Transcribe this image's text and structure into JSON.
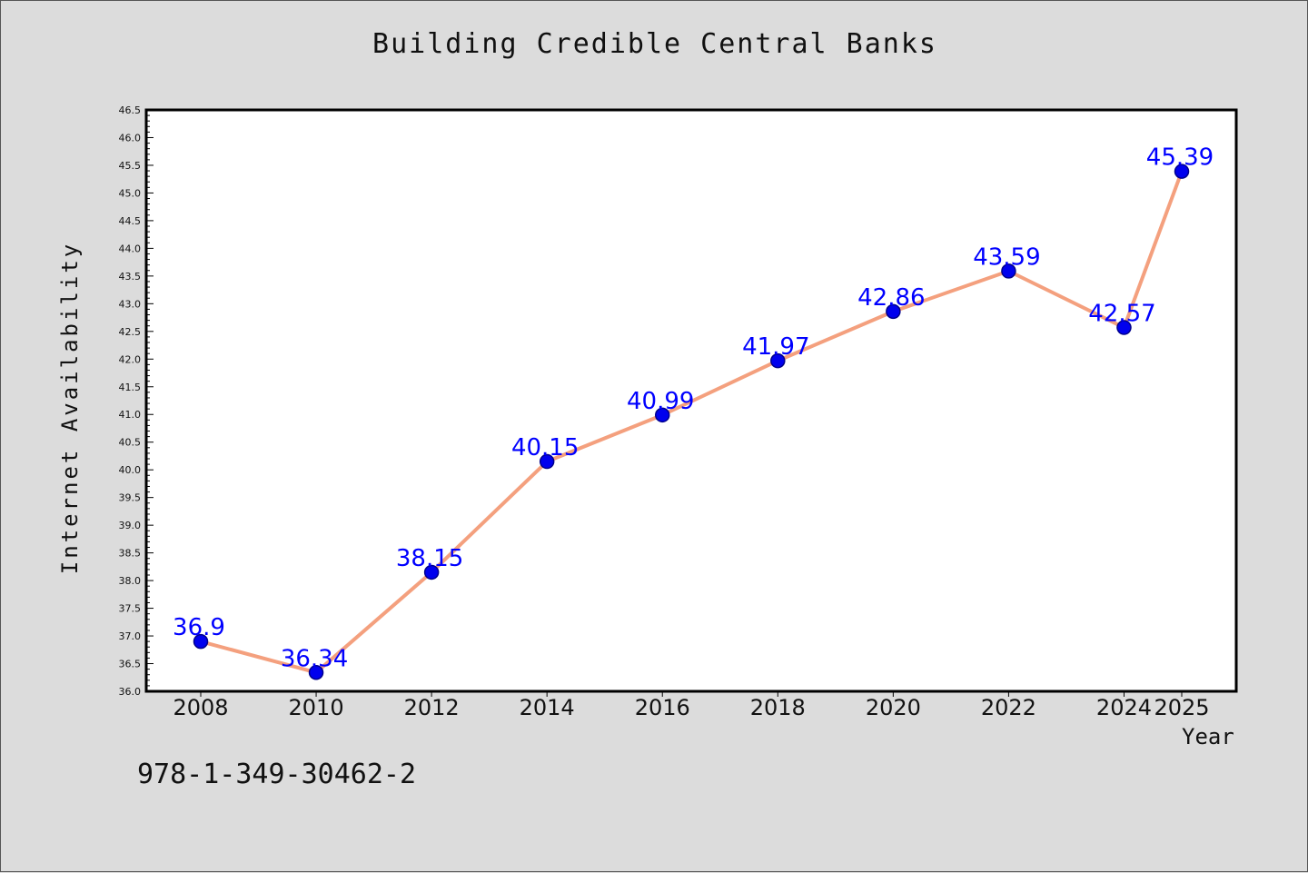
{
  "chart_data": {
    "type": "line",
    "title": "Building Credible Central Banks",
    "xlabel": "Year",
    "ylabel": "Internet Availability",
    "x": [
      "2008",
      "2010",
      "2012",
      "2014",
      "2016",
      "2018",
      "2020",
      "2022",
      "2024",
      "2025"
    ],
    "series": [
      {
        "values": [
          36.9,
          36.34,
          38.15,
          40.15,
          40.99,
          41.97,
          42.86,
          43.59,
          42.57,
          45.39
        ],
        "data_labels": [
          "36.9",
          "36.34",
          "38.15",
          "40.15",
          "40.99",
          "41.97",
          "42.86",
          "43.59",
          "42.57",
          "45.39"
        ]
      }
    ],
    "ylim": [
      36.0,
      46.5
    ],
    "y_ticks": [
      "36.0",
      "36.5",
      "37.0",
      "37.5",
      "38.0",
      "38.5",
      "39.0",
      "39.5",
      "40.0",
      "40.5",
      "41.0",
      "41.5",
      "42.0",
      "42.5",
      "43.0",
      "43.5",
      "44.0",
      "44.5",
      "45.0",
      "45.5",
      "46.0",
      "46.5"
    ],
    "grid": false,
    "legend": "none",
    "colors": {
      "line": "#f4a07e",
      "marker": "#0000ee",
      "marker_edge": "#00008b",
      "label": "#0000ff",
      "plot_background": "#ffffff",
      "figure_background": "#dcdcdc"
    }
  },
  "footer": {
    "isbn": "978-1-349-30462-2"
  }
}
